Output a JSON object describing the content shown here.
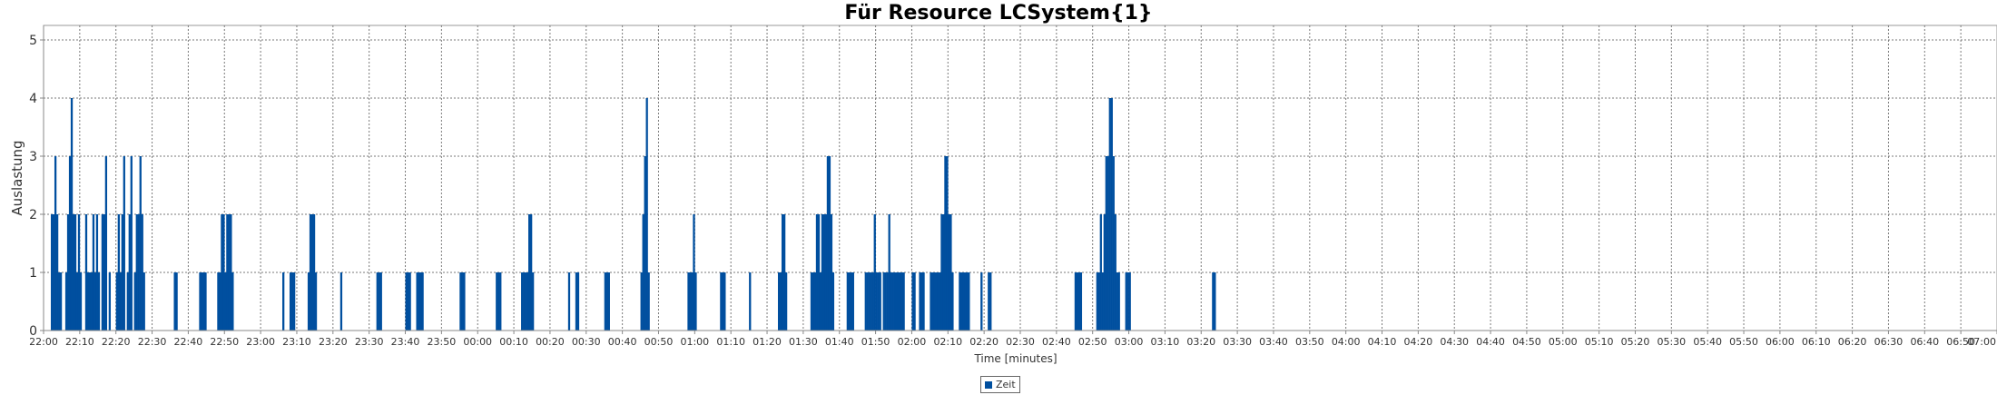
{
  "chart_data": {
    "type": "bar",
    "title": "Für Resource LCSystem{1}",
    "xlabel": "Time [minutes]",
    "ylabel": "Auslastung",
    "ylim": [
      0,
      5.25
    ],
    "yticks": [
      0,
      1,
      2,
      3,
      4,
      5
    ],
    "x_unit": "minutes",
    "xlim": [
      "22:00",
      "07:00"
    ],
    "xticks": [
      "22:00",
      "22:10",
      "22:20",
      "22:30",
      "22:40",
      "22:50",
      "23:00",
      "23:10",
      "23:20",
      "23:30",
      "23:40",
      "23:50",
      "00:00",
      "00:10",
      "00:20",
      "00:30",
      "00:40",
      "00:50",
      "01:00",
      "01:10",
      "01:20",
      "01:30",
      "01:40",
      "01:50",
      "02:00",
      "02:10",
      "02:20",
      "02:30",
      "02:40",
      "02:50",
      "03:00",
      "03:10",
      "03:20",
      "03:30",
      "03:40",
      "03:50",
      "04:00",
      "04:10",
      "04:20",
      "04:30",
      "04:40",
      "04:50",
      "05:00",
      "05:10",
      "05:20",
      "05:30",
      "05:40",
      "05:50",
      "06:00",
      "06:10",
      "06:20",
      "06:30",
      "06:40",
      "06:50",
      "07:00"
    ],
    "grid": true,
    "legend_position": "bottom-center",
    "bar_color": "#004f9f",
    "series": [
      {
        "name": "Zeit",
        "points": [
          [
            "22:02",
            2
          ],
          [
            "22:02.5",
            2
          ],
          [
            "22:03",
            3
          ],
          [
            "22:03.5",
            2
          ],
          [
            "22:04",
            1
          ],
          [
            "22:04.5",
            1
          ],
          [
            "22:06",
            1
          ],
          [
            "22:06.5",
            2
          ],
          [
            "22:07",
            3
          ],
          [
            "22:07.5",
            4
          ],
          [
            "22:08",
            2
          ],
          [
            "22:08.5",
            2
          ],
          [
            "22:09",
            1
          ],
          [
            "22:09.5",
            2
          ],
          [
            "22:10",
            1
          ],
          [
            "22:11.5",
            2
          ],
          [
            "22:12",
            1
          ],
          [
            "22:12.5",
            1
          ],
          [
            "22:13",
            1
          ],
          [
            "22:13.5",
            2
          ],
          [
            "22:14",
            1
          ],
          [
            "22:14.5",
            2
          ],
          [
            "22:15",
            1
          ],
          [
            "22:16",
            2
          ],
          [
            "22:16.5",
            2
          ],
          [
            "22:17",
            3
          ],
          [
            "22:18",
            1
          ],
          [
            "22:20",
            1
          ],
          [
            "22:20.5",
            2
          ],
          [
            "22:21",
            1
          ],
          [
            "22:21.5",
            2
          ],
          [
            "22:22",
            3
          ],
          [
            "22:23",
            1
          ],
          [
            "22:23.5",
            2
          ],
          [
            "22:24",
            3
          ],
          [
            "22:25",
            1
          ],
          [
            "22:25.5",
            2
          ],
          [
            "22:26",
            2
          ],
          [
            "22:26.5",
            3
          ],
          [
            "22:27",
            2
          ],
          [
            "22:27.5",
            1
          ],
          [
            "22:36",
            1
          ],
          [
            "22:36.5",
            1
          ],
          [
            "22:43",
            1
          ],
          [
            "22:43.5",
            1
          ],
          [
            "22:44",
            1
          ],
          [
            "22:44.5",
            1
          ],
          [
            "22:48",
            1
          ],
          [
            "22:48.5",
            1
          ],
          [
            "22:49",
            2
          ],
          [
            "22:49.5",
            2
          ],
          [
            "22:50",
            1
          ],
          [
            "22:50.5",
            2
          ],
          [
            "22:51",
            2
          ],
          [
            "22:51.5",
            2
          ],
          [
            "22:52",
            1
          ],
          [
            "23:06",
            1
          ],
          [
            "23:08",
            1
          ],
          [
            "23:08.5",
            1
          ],
          [
            "23:09",
            1
          ],
          [
            "23:13",
            1
          ],
          [
            "23:13.5",
            2
          ],
          [
            "23:14",
            2
          ],
          [
            "23:14.5",
            2
          ],
          [
            "23:15",
            1
          ],
          [
            "23:22",
            1
          ],
          [
            "23:32",
            1
          ],
          [
            "23:32.5",
            1
          ],
          [
            "23:33",
            1
          ],
          [
            "23:40",
            1
          ],
          [
            "23:40.5",
            1
          ],
          [
            "23:41",
            1
          ],
          [
            "23:43",
            1
          ],
          [
            "23:43.5",
            1
          ],
          [
            "23:44",
            1
          ],
          [
            "23:44.5",
            1
          ],
          [
            "23:55",
            1
          ],
          [
            "23:55.5",
            1
          ],
          [
            "23:56",
            1
          ],
          [
            "00:05",
            1
          ],
          [
            "00:05.5",
            1
          ],
          [
            "00:06",
            1
          ],
          [
            "00:12",
            1
          ],
          [
            "00:12.5",
            1
          ],
          [
            "00:13",
            1
          ],
          [
            "00:13.5",
            1
          ],
          [
            "00:14",
            2
          ],
          [
            "00:14.5",
            2
          ],
          [
            "00:15",
            1
          ],
          [
            "00:25",
            1
          ],
          [
            "00:27",
            1
          ],
          [
            "00:27.5",
            1
          ],
          [
            "00:35",
            1
          ],
          [
            "00:35.5",
            1
          ],
          [
            "00:36",
            1
          ],
          [
            "00:45",
            1
          ],
          [
            "00:45.5",
            2
          ],
          [
            "00:46",
            3
          ],
          [
            "00:46.5",
            4
          ],
          [
            "00:47",
            1
          ],
          [
            "00:58",
            1
          ],
          [
            "00:58.5",
            1
          ],
          [
            "00:59",
            1
          ],
          [
            "00:59.5",
            2
          ],
          [
            "01:00",
            1
          ],
          [
            "01:07",
            1
          ],
          [
            "01:07.5",
            1
          ],
          [
            "01:08",
            1
          ],
          [
            "01:15",
            1
          ],
          [
            "01:23",
            1
          ],
          [
            "01:23.5",
            1
          ],
          [
            "01:24",
            2
          ],
          [
            "01:24.5",
            2
          ],
          [
            "01:25",
            1
          ],
          [
            "01:32",
            1
          ],
          [
            "01:32.5",
            1
          ],
          [
            "01:33",
            1
          ],
          [
            "01:33.5",
            2
          ],
          [
            "01:34",
            2
          ],
          [
            "01:34.5",
            1
          ],
          [
            "01:35",
            2
          ],
          [
            "01:35.5",
            2
          ],
          [
            "01:36",
            2
          ],
          [
            "01:36.5",
            3
          ],
          [
            "01:37",
            3
          ],
          [
            "01:37.5",
            2
          ],
          [
            "01:38",
            1
          ],
          [
            "01:42",
            1
          ],
          [
            "01:42.5",
            1
          ],
          [
            "01:43",
            1
          ],
          [
            "01:43.5",
            1
          ],
          [
            "01:47",
            1
          ],
          [
            "01:47.5",
            1
          ],
          [
            "01:48",
            1
          ],
          [
            "01:48.5",
            1
          ],
          [
            "01:49",
            1
          ],
          [
            "01:49.5",
            2
          ],
          [
            "01:50",
            1
          ],
          [
            "01:50.5",
            1
          ],
          [
            "01:51",
            1
          ],
          [
            "01:52",
            1
          ],
          [
            "01:52.5",
            1
          ],
          [
            "01:53",
            1
          ],
          [
            "01:53.5",
            2
          ],
          [
            "01:54",
            1
          ],
          [
            "01:54.5",
            1
          ],
          [
            "01:55",
            1
          ],
          [
            "01:55.5",
            1
          ],
          [
            "01:56",
            1
          ],
          [
            "01:56.5",
            1
          ],
          [
            "01:57",
            1
          ],
          [
            "01:57.5",
            1
          ],
          [
            "02:00",
            1
          ],
          [
            "02:00.5",
            1
          ],
          [
            "02:02",
            1
          ],
          [
            "02:02.5",
            1
          ],
          [
            "02:03",
            1
          ],
          [
            "02:05",
            1
          ],
          [
            "02:05.5",
            1
          ],
          [
            "02:06",
            1
          ],
          [
            "02:06.5",
            1
          ],
          [
            "02:07",
            1
          ],
          [
            "02:07.5",
            1
          ],
          [
            "02:08",
            2
          ],
          [
            "02:08.5",
            2
          ],
          [
            "02:09",
            3
          ],
          [
            "02:09.5",
            3
          ],
          [
            "02:10",
            2
          ],
          [
            "02:10.5",
            2
          ],
          [
            "02:11",
            1
          ],
          [
            "02:13",
            1
          ],
          [
            "02:13.5",
            1
          ],
          [
            "02:14",
            1
          ],
          [
            "02:14.5",
            1
          ],
          [
            "02:15",
            1
          ],
          [
            "02:15.5",
            1
          ],
          [
            "02:19",
            1
          ],
          [
            "02:21",
            1
          ],
          [
            "02:21.5",
            1
          ],
          [
            "02:45",
            1
          ],
          [
            "02:45.5",
            1
          ],
          [
            "02:46",
            1
          ],
          [
            "02:46.5",
            1
          ],
          [
            "02:51",
            1
          ],
          [
            "02:51.5",
            1
          ],
          [
            "02:52",
            2
          ],
          [
            "02:52.5",
            1
          ],
          [
            "02:53",
            2
          ],
          [
            "02:53.5",
            3
          ],
          [
            "02:54",
            3
          ],
          [
            "02:54.5",
            4
          ],
          [
            "02:55",
            4
          ],
          [
            "02:55.5",
            3
          ],
          [
            "02:56",
            2
          ],
          [
            "02:56.5",
            1
          ],
          [
            "02:57",
            1
          ],
          [
            "02:59",
            1
          ],
          [
            "02:59.5",
            1
          ],
          [
            "03:00",
            1
          ],
          [
            "03:23",
            1
          ],
          [
            "03:23.5",
            1
          ]
        ]
      }
    ]
  }
}
